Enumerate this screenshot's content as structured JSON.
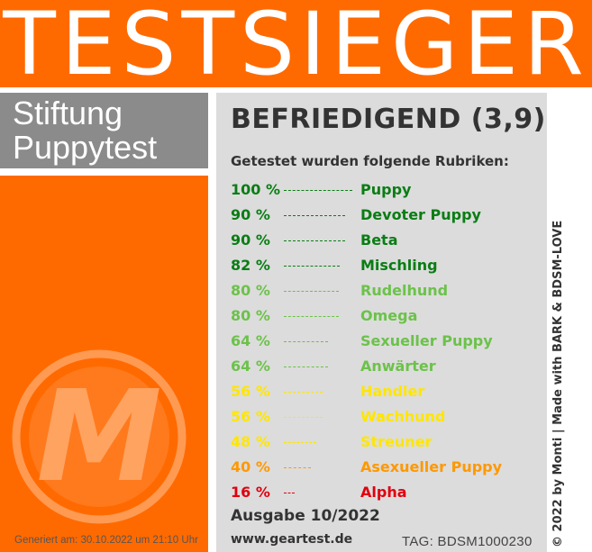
{
  "banner": {
    "title": "TESTSIEGER"
  },
  "brand": {
    "line1": "Stiftung",
    "line2": "Puppytest"
  },
  "rating": "BEFRIEDIGEND (3,9)",
  "subtitle": "Getestet wurden folgende Rubriken:",
  "categories": [
    {
      "percent": "100 %",
      "value": 100,
      "name": "Puppy",
      "color": "#0a7d14"
    },
    {
      "percent": "90 %",
      "value": 90,
      "name": "Devoter Puppy",
      "color": "#0a7d14"
    },
    {
      "percent": "90 %",
      "value": 90,
      "name": "Beta",
      "color": "#0a7d14"
    },
    {
      "percent": "82 %",
      "value": 82,
      "name": "Mischling",
      "color": "#0a7d14"
    },
    {
      "percent": "80 %",
      "value": 80,
      "name": "Rudelhund",
      "color": "#6cc24a"
    },
    {
      "percent": "80 %",
      "value": 80,
      "name": "Omega",
      "color": "#6cc24a"
    },
    {
      "percent": "64 %",
      "value": 64,
      "name": "Sexueller Puppy",
      "color": "#6cc24a"
    },
    {
      "percent": "64 %",
      "value": 64,
      "name": "Anwärter",
      "color": "#6cc24a"
    },
    {
      "percent": "56 %",
      "value": 56,
      "name": "Handler",
      "color": "#ffe600"
    },
    {
      "percent": "56 %",
      "value": 56,
      "name": "Wachhund",
      "color": "#ffe600"
    },
    {
      "percent": "48 %",
      "value": 48,
      "name": "Streuner",
      "color": "#ffe600"
    },
    {
      "percent": "40 %",
      "value": 40,
      "name": "Asexueller Puppy",
      "color": "#ff9800"
    },
    {
      "percent": "16 %",
      "value": 16,
      "name": "Alpha",
      "color": "#e0000f"
    }
  ],
  "issue": "Ausgabe 10/2022",
  "website": "www.geartest.de",
  "tag": "TAG: BDSM1000230",
  "generated": "Generiert am: 30.10.2022 um 21:10 Uhr",
  "copyright": "© 2022 by Monti | Made with BARK & BDSM-LOVE",
  "logo": {
    "letter": "M",
    "icon": "m-logo-icon"
  },
  "colors": {
    "orange": "#ff6a00",
    "gray_box": "#8b8b8b",
    "panel": "#dcdcdc"
  }
}
